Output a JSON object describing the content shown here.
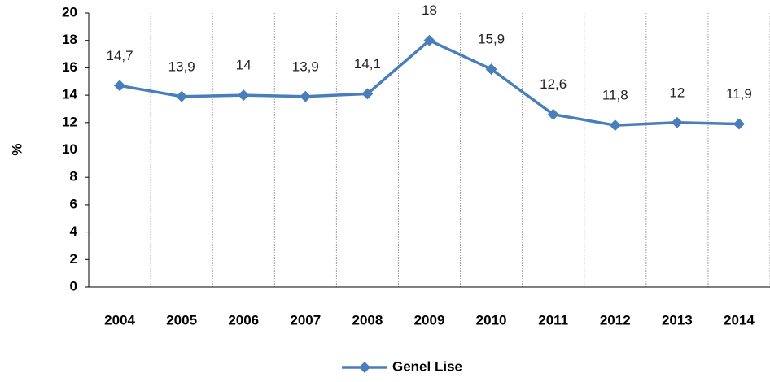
{
  "chart_data": {
    "type": "line",
    "y_label": "%",
    "categories": [
      "2004",
      "2005",
      "2006",
      "2007",
      "2008",
      "2009",
      "2010",
      "2011",
      "2012",
      "2013",
      "2014"
    ],
    "series": [
      {
        "name": "Genel Lise",
        "color": "#4a7ebb",
        "values": [
          14.7,
          13.9,
          14,
          13.9,
          14.1,
          18,
          15.9,
          12.6,
          11.8,
          12,
          11.9
        ],
        "value_labels": [
          "14,7",
          "13,9",
          "14",
          "13,9",
          "14,1",
          "18",
          "15,9",
          "12,6",
          "11,8",
          "12",
          "11,9"
        ]
      }
    ],
    "ylim": [
      0,
      20
    ],
    "yticks": [
      0,
      2,
      4,
      6,
      8,
      10,
      12,
      14,
      16,
      18,
      20
    ],
    "grid": true,
    "legend": "bottom"
  }
}
